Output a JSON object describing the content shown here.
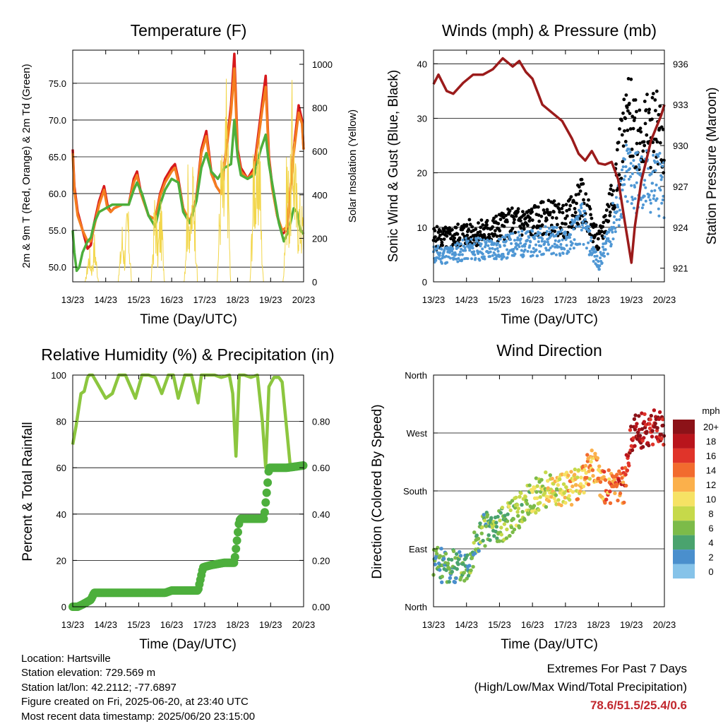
{
  "colors": {
    "temp_red": "#d7191c",
    "temp_orange": "#f47d20",
    "dewpoint_green": "#4daf3c",
    "solar_yellow": "#f2d64b",
    "wind_blue": "#4f97d4",
    "gust_black": "#000000",
    "pressure_maroon": "#9b1b1b",
    "rh_green": "#8cc63f",
    "precip_green": "#4daf3c",
    "speed_scale": [
      "#c6e9f7",
      "#86c3e9",
      "#4a8fcd",
      "#4aa36e",
      "#7cbb49",
      "#c6d94a",
      "#f6e264",
      "#fbb04b",
      "#f26b2e",
      "#e0342a",
      "#b9151c",
      "#8c1218"
    ]
  },
  "chart_data": [
    {
      "id": "temperature",
      "type": "line",
      "title": "Temperature (F)",
      "xlabel": "Time (Day/UTC)",
      "ylabel": "2m & 9m T (Red, Orange) & 2m Td (Green)",
      "y2label": "Solar Insolation (Yellow)",
      "x_ticks": [
        "13/23",
        "14/23",
        "15/23",
        "16/23",
        "17/23",
        "18/23",
        "19/23",
        "20/23"
      ],
      "xlim": [
        0,
        7
      ],
      "ylim": [
        48,
        79.5
      ],
      "y_ticks": [
        "50.0",
        "55.0",
        "60.0",
        "65.0",
        "70.0",
        "75.0"
      ],
      "y2lim": [
        0,
        1065
      ],
      "y2_ticks": [
        "0",
        "200",
        "400",
        "600",
        "800",
        "1000"
      ],
      "grid": true,
      "series": [
        {
          "key": "t2m",
          "color": "temp_red",
          "x": [
            0,
            0.05,
            0.15,
            0.3,
            0.45,
            0.55,
            0.65,
            0.8,
            0.95,
            1.05,
            1.15,
            1.25,
            1.5,
            1.7,
            1.85,
            1.95,
            2.05,
            2.3,
            2.5,
            2.65,
            2.8,
            3.0,
            3.1,
            3.2,
            3.35,
            3.55,
            3.75,
            3.9,
            4.05,
            4.2,
            4.35,
            4.5,
            4.7,
            4.8,
            4.9,
            5.0,
            5.1,
            5.3,
            5.5,
            5.75,
            5.85,
            5.95,
            6.05,
            6.2,
            6.35,
            6.5,
            6.7,
            6.85,
            6.95,
            7.0
          ],
          "y": [
            66,
            61,
            57.5,
            55,
            52.5,
            53,
            56,
            59,
            61,
            58.5,
            57.5,
            58,
            58.5,
            58.5,
            62,
            63,
            60.5,
            57,
            56.5,
            60,
            62,
            63.5,
            64,
            62,
            58,
            56,
            59.5,
            66,
            68.5,
            63,
            61,
            60,
            68,
            72,
            79,
            66,
            63.5,
            62,
            63.5,
            72.5,
            76,
            65,
            61,
            57,
            54.5,
            55,
            66,
            72,
            70,
            66
          ]
        },
        {
          "key": "t9m",
          "color": "temp_orange",
          "x": [
            0,
            0.05,
            0.15,
            0.3,
            0.45,
            0.55,
            0.65,
            0.8,
            0.95,
            1.05,
            1.15,
            1.25,
            1.5,
            1.7,
            1.85,
            1.95,
            2.05,
            2.3,
            2.5,
            2.65,
            2.8,
            3.0,
            3.1,
            3.2,
            3.35,
            3.55,
            3.75,
            3.9,
            4.05,
            4.2,
            4.35,
            4.5,
            4.7,
            4.8,
            4.9,
            5.0,
            5.1,
            5.3,
            5.5,
            5.75,
            5.85,
            5.95,
            6.05,
            6.2,
            6.35,
            6.5,
            6.7,
            6.85,
            6.95,
            7.0
          ],
          "y": [
            65.5,
            60.5,
            57,
            55,
            53.5,
            53.5,
            55.5,
            58.5,
            60.5,
            58,
            57.5,
            58,
            58.5,
            58.5,
            61.5,
            62.5,
            60.2,
            57,
            56.5,
            59.7,
            61.5,
            63,
            63.5,
            61.6,
            58,
            56.2,
            59.2,
            65.5,
            67.8,
            62.7,
            61,
            60,
            67.5,
            71,
            77,
            65.5,
            63,
            62,
            63,
            71.5,
            74.5,
            64.6,
            60.7,
            57,
            55,
            55.5,
            65.5,
            71,
            69.5,
            66
          ]
        },
        {
          "key": "td2m",
          "color": "dewpoint_green",
          "x": [
            0,
            0.05,
            0.12,
            0.2,
            0.3,
            0.45,
            0.55,
            0.65,
            0.8,
            1.0,
            1.2,
            1.5,
            1.7,
            1.85,
            1.95,
            2.1,
            2.3,
            2.5,
            2.65,
            2.8,
            3.0,
            3.2,
            3.35,
            3.55,
            3.75,
            3.9,
            4.05,
            4.2,
            4.4,
            4.6,
            4.8,
            4.9,
            5.0,
            5.1,
            5.3,
            5.5,
            5.7,
            5.85,
            5.95,
            6.1,
            6.25,
            6.4,
            6.55,
            6.7,
            6.8,
            6.9,
            7.0
          ],
          "y": [
            55,
            52,
            49.5,
            50,
            52,
            53.5,
            54,
            56,
            57.5,
            58,
            58.5,
            58.5,
            58.5,
            60.5,
            61.5,
            60,
            57,
            55.5,
            58.5,
            60.5,
            62,
            61.5,
            57.5,
            56,
            59,
            63.5,
            65.5,
            63,
            62,
            63.5,
            64,
            70,
            65,
            62.5,
            62,
            62.5,
            66,
            68,
            64,
            60,
            56,
            53.5,
            55,
            58,
            57.5,
            55,
            54.5
          ]
        },
        {
          "key": "solar",
          "color": "solar_yellow",
          "axis": "y2",
          "x": [
            0,
            0.38,
            0.5,
            0.58,
            0.66,
            0.72,
            0.78,
            1.03,
            1.38,
            1.5,
            1.58,
            1.66,
            1.72,
            1.78,
            2.03,
            2.38,
            2.5,
            2.58,
            2.66,
            2.72,
            2.78,
            3.03,
            3.38,
            3.5,
            3.58,
            3.66,
            3.72,
            3.78,
            4.03,
            4.38,
            4.5,
            4.58,
            4.66,
            4.72,
            4.78,
            5.03,
            5.38,
            5.5,
            5.58,
            5.66,
            5.72,
            5.78,
            6.03,
            6.38,
            6.5,
            6.58,
            6.66,
            6.72,
            6.78,
            7.0
          ],
          "y": [
            0,
            0,
            180,
            80,
            250,
            120,
            0,
            0,
            0,
            300,
            150,
            420,
            250,
            0,
            0,
            0,
            500,
            200,
            400,
            300,
            0,
            0,
            0,
            600,
            300,
            700,
            400,
            0,
            0,
            0,
            700,
            550,
            1000,
            650,
            0,
            0,
            0,
            800,
            500,
            900,
            300,
            0,
            0,
            0,
            700,
            450,
            1030,
            800,
            500,
            350
          ]
        }
      ]
    },
    {
      "id": "winds_pressure",
      "type": "scatter",
      "title": "Winds (mph) & Pressure (mb)",
      "xlabel": "Time (Day/UTC)",
      "ylabel": "Sonic Wind & Gust (Blue, Black)",
      "y2label": "Station Pressure (Maroon)",
      "x_ticks": [
        "13/23",
        "14/23",
        "15/23",
        "16/23",
        "17/23",
        "18/23",
        "19/23",
        "20/23"
      ],
      "xlim": [
        0,
        7
      ],
      "ylim": [
        0,
        42.5
      ],
      "y_ticks": [
        "0",
        "10",
        "20",
        "30",
        "40"
      ],
      "y2lim": [
        920,
        937
      ],
      "y2_ticks": [
        "921",
        "924",
        "927",
        "930",
        "933",
        "936"
      ],
      "grid": true,
      "series": [
        {
          "key": "gust",
          "color": "gust_black",
          "x": [
            0,
            0.5,
            1.0,
            1.5,
            2.0,
            2.5,
            3.0,
            3.5,
            4.0,
            4.5,
            5.0,
            5.3,
            5.6,
            5.9,
            6.2,
            6.5,
            6.8,
            7.0
          ],
          "y": [
            8,
            8,
            9,
            9,
            10,
            11,
            11,
            12,
            11,
            15,
            7,
            13,
            22,
            30,
            28,
            27,
            28,
            25
          ]
        },
        {
          "key": "wind",
          "color": "wind_blue",
          "x": [
            0,
            0.5,
            1.0,
            1.5,
            2.0,
            2.5,
            3.0,
            3.5,
            4.0,
            4.5,
            5.0,
            5.3,
            5.6,
            5.9,
            6.2,
            6.5,
            6.8,
            7.0
          ],
          "y": [
            5,
            5,
            6,
            6,
            6,
            7,
            7,
            8,
            7,
            11,
            3,
            8,
            14,
            20,
            18,
            18,
            19,
            16
          ]
        },
        {
          "key": "pressure",
          "color": "pressure_maroon",
          "axis": "y2",
          "x": [
            0,
            0.15,
            0.4,
            0.6,
            0.9,
            1.2,
            1.5,
            1.8,
            2.1,
            2.4,
            2.6,
            2.8,
            3.0,
            3.3,
            3.6,
            3.9,
            4.2,
            4.4,
            4.6,
            4.8,
            5.0,
            5.2,
            5.4,
            5.6,
            5.8,
            6.0,
            6.1,
            6.3,
            6.6,
            6.9,
            7.0
          ],
          "y": [
            934.5,
            935.2,
            934,
            933.8,
            934.6,
            935.2,
            935.2,
            935.6,
            936.4,
            935.8,
            936.2,
            935.4,
            934.9,
            933,
            932.4,
            931.8,
            930.5,
            929.4,
            928.9,
            929.6,
            928.7,
            928.6,
            928.8,
            927.5,
            924.4,
            921.4,
            924,
            927.4,
            930.4,
            932.2,
            933
          ]
        }
      ]
    },
    {
      "id": "rh_precip",
      "type": "line",
      "title": "Relative Humidity (%) & Precipitation (in)",
      "xlabel": "Time (Day/UTC)",
      "ylabel": "Percent & Total Rainfall",
      "x_ticks": [
        "13/23",
        "14/23",
        "15/23",
        "16/23",
        "17/23",
        "18/23",
        "19/23",
        "20/23"
      ],
      "xlim": [
        0,
        7
      ],
      "ylim": [
        0,
        100
      ],
      "y_ticks": [
        "0",
        "20",
        "40",
        "60",
        "80",
        "100"
      ],
      "y2lim": [
        0,
        1.0
      ],
      "y2_ticks": [
        "0.00",
        "0.20",
        "0.40",
        "0.60",
        "0.80"
      ],
      "grid": true,
      "series": [
        {
          "key": "rh",
          "color": "rh_green",
          "x": [
            0,
            0.1,
            0.25,
            0.35,
            0.45,
            0.5,
            0.6,
            0.8,
            1.0,
            1.2,
            1.4,
            1.6,
            1.75,
            1.9,
            2.1,
            2.3,
            2.5,
            2.7,
            2.9,
            3.05,
            3.2,
            3.4,
            3.6,
            3.8,
            3.9,
            4.1,
            4.3,
            4.5,
            4.75,
            4.85,
            4.95,
            5.05,
            5.2,
            5.4,
            5.6,
            5.75,
            5.85,
            5.95,
            6.1,
            6.25,
            6.35,
            6.5,
            6.6,
            7.0
          ],
          "y": [
            70,
            78,
            92,
            93,
            99,
            100,
            100,
            95,
            90,
            92,
            100,
            100,
            95,
            90,
            100,
            100,
            99,
            92,
            100,
            100,
            90,
            100,
            100,
            88,
            100,
            100,
            100,
            99,
            100,
            92,
            65,
            100,
            100,
            99,
            100,
            80,
            60,
            95,
            99,
            99,
            97,
            75,
            60,
            60
          ]
        },
        {
          "key": "precip",
          "color": "precip_green",
          "axis": "y2",
          "x": [
            0,
            0.15,
            0.3,
            0.55,
            0.65,
            1.0,
            2.0,
            2.8,
            3.0,
            3.8,
            3.95,
            4.2,
            4.6,
            4.9,
            5.0,
            5.05,
            5.1,
            5.3,
            5.6,
            5.8,
            5.9,
            5.95,
            6.1,
            6.5,
            7.0
          ],
          "y": [
            0,
            0,
            0.01,
            0.03,
            0.06,
            0.06,
            0.06,
            0.06,
            0.07,
            0.07,
            0.17,
            0.18,
            0.19,
            0.19,
            0.31,
            0.37,
            0.38,
            0.38,
            0.38,
            0.38,
            0.52,
            0.6,
            0.6,
            0.6,
            0.61
          ]
        }
      ]
    },
    {
      "id": "wind_direction",
      "type": "scatter",
      "title": "Wind Direction",
      "xlabel": "Time (Day/UTC)",
      "ylabel": "Direction (Colored By Speed)",
      "x_ticks": [
        "13/23",
        "14/23",
        "15/23",
        "16/23",
        "17/23",
        "18/23",
        "19/23",
        "20/23"
      ],
      "xlim": [
        0,
        7
      ],
      "ylim": [
        0,
        360
      ],
      "y_ticks": [
        "North",
        "East",
        "South",
        "West",
        "North"
      ],
      "legend": {
        "title": "mph",
        "labels": [
          "20+",
          "18",
          "16",
          "14",
          "12",
          "10",
          "8",
          "6",
          "4",
          "2",
          "0"
        ],
        "placement": "right"
      },
      "series": [
        {
          "key": "direction",
          "x": [
            0,
            0.5,
            1.0,
            1.5,
            2.0,
            2.5,
            3.0,
            3.5,
            4.0,
            4.4,
            4.8,
            5.2,
            5.6,
            5.8,
            6.0,
            6.4,
            6.8,
            7.0
          ],
          "y": [
            70,
            60,
            65,
            120,
            125,
            145,
            170,
            185,
            180,
            190,
            220,
            185,
            185,
            190,
            270,
            275,
            280,
            275
          ],
          "speed": [
            4,
            4,
            5,
            5,
            6,
            7,
            8,
            9,
            10,
            11,
            12,
            13,
            14,
            15,
            18,
            19,
            19,
            18
          ]
        }
      ]
    }
  ],
  "footer": {
    "location": "Location: Hartsville",
    "elevation": "Station elevation: 729.569 m",
    "latlon": "Station lat/lon: 42.2112; -77.6897",
    "created": "Figure created on Fri, 2025-06-20, at 23:40 UTC",
    "recent": "Most recent data timestamp: 2025/06/20 23:15:00"
  },
  "extremes": {
    "title": "Extremes For Past 7 Days",
    "subtitle": "(High/Low/Max Wind/Total Precipitation)",
    "values": "78.6/51.5/25.4/0.6"
  }
}
